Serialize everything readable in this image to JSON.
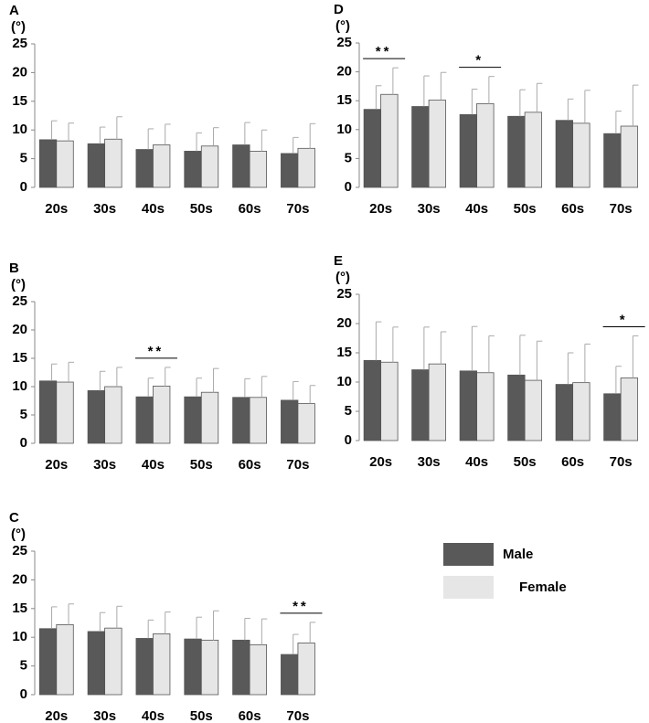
{
  "chart_data": [
    {
      "type": "bar",
      "title": "A",
      "y_label": "(°)",
      "categories": [
        "20s",
        "30s",
        "40s",
        "50s",
        "60s",
        "70s"
      ],
      "ylim": [
        0,
        25
      ],
      "yticks": [
        0,
        5,
        10,
        15,
        20,
        25
      ],
      "series": [
        {
          "name": "Male",
          "color": "#595959",
          "values": [
            8.3,
            7.6,
            6.6,
            6.3,
            7.4,
            5.9
          ],
          "errors": [
            3.3,
            2.9,
            3.6,
            3.2,
            3.9,
            2.8
          ]
        },
        {
          "name": "Female",
          "color": "#e6e6e6",
          "values": [
            8.1,
            8.4,
            7.4,
            7.2,
            6.3,
            6.8
          ],
          "errors": [
            3.1,
            3.9,
            3.6,
            3.2,
            3.7,
            4.3
          ]
        }
      ],
      "annotations": []
    },
    {
      "type": "bar",
      "title": "B",
      "y_label": "(°)",
      "categories": [
        "20s",
        "30s",
        "40s",
        "50s",
        "60s",
        "70s"
      ],
      "ylim": [
        0,
        25
      ],
      "yticks": [
        0,
        5,
        10,
        15,
        20,
        25
      ],
      "series": [
        {
          "color": "#595959",
          "values": [
            11.0,
            9.3,
            8.2,
            8.2,
            8.1,
            7.6
          ],
          "errors": [
            3.0,
            3.4,
            3.3,
            3.3,
            3.3,
            3.3
          ]
        },
        {
          "color": "#e6e6e6",
          "values": [
            10.8,
            10.0,
            10.1,
            9.0,
            8.1,
            7.0
          ],
          "errors": [
            3.5,
            3.4,
            3.3,
            4.2,
            3.7,
            3.2
          ]
        }
      ],
      "annotations": [
        {
          "label": "**",
          "category": "40s"
        }
      ]
    },
    {
      "type": "bar",
      "title": "C",
      "y_label": "(°)",
      "categories": [
        "20s",
        "30s",
        "40s",
        "50s",
        "60s",
        "70s"
      ],
      "ylim": [
        0,
        25
      ],
      "yticks": [
        0,
        5,
        10,
        15,
        20,
        25
      ],
      "series": [
        {
          "color": "#595959",
          "values": [
            11.5,
            11.0,
            9.8,
            9.7,
            9.5,
            7.0
          ],
          "errors": [
            3.8,
            3.3,
            3.2,
            3.8,
            3.8,
            3.5
          ]
        },
        {
          "color": "#e6e6e6",
          "values": [
            12.2,
            11.6,
            10.6,
            9.5,
            8.7,
            9.0
          ],
          "errors": [
            3.6,
            3.8,
            3.8,
            5.1,
            4.5,
            3.6
          ]
        }
      ],
      "annotations": [
        {
          "label": "**",
          "category": "70s"
        }
      ]
    },
    {
      "type": "bar",
      "title": "D",
      "y_label": "(°)",
      "categories": [
        "20s",
        "30s",
        "40s",
        "50s",
        "60s",
        "70s"
      ],
      "ylim": [
        0,
        25
      ],
      "yticks": [
        0,
        5,
        10,
        15,
        20,
        25
      ],
      "series": [
        {
          "color": "#595959",
          "values": [
            13.5,
            14.0,
            12.6,
            12.3,
            11.6,
            9.3
          ],
          "errors": [
            4.1,
            5.3,
            4.4,
            4.6,
            3.7,
            3.9
          ]
        },
        {
          "color": "#e6e6e6",
          "values": [
            16.1,
            15.1,
            14.5,
            13.0,
            11.1,
            10.6
          ],
          "errors": [
            4.6,
            4.8,
            4.7,
            5.0,
            5.7,
            7.1
          ]
        }
      ],
      "annotations": [
        {
          "label": "**",
          "category": "20s"
        },
        {
          "label": "*",
          "category": "40s"
        }
      ]
    },
    {
      "type": "bar",
      "title": "E",
      "y_label": "(°)",
      "categories": [
        "20s",
        "30s",
        "40s",
        "50s",
        "60s",
        "70s"
      ],
      "ylim": [
        0,
        25
      ],
      "yticks": [
        0,
        5,
        10,
        15,
        20,
        25
      ],
      "series": [
        {
          "color": "#595959",
          "values": [
            13.7,
            12.1,
            11.9,
            11.2,
            9.6,
            8.0
          ],
          "errors": [
            6.6,
            7.3,
            7.6,
            6.8,
            5.4,
            4.7
          ]
        },
        {
          "color": "#e6e6e6",
          "values": [
            13.4,
            13.1,
            11.6,
            10.3,
            9.9,
            10.7
          ],
          "errors": [
            6.0,
            5.5,
            6.3,
            6.7,
            6.6,
            7.2
          ]
        }
      ],
      "annotations": [
        {
          "label": "*",
          "category": "70s"
        }
      ]
    }
  ]
}
